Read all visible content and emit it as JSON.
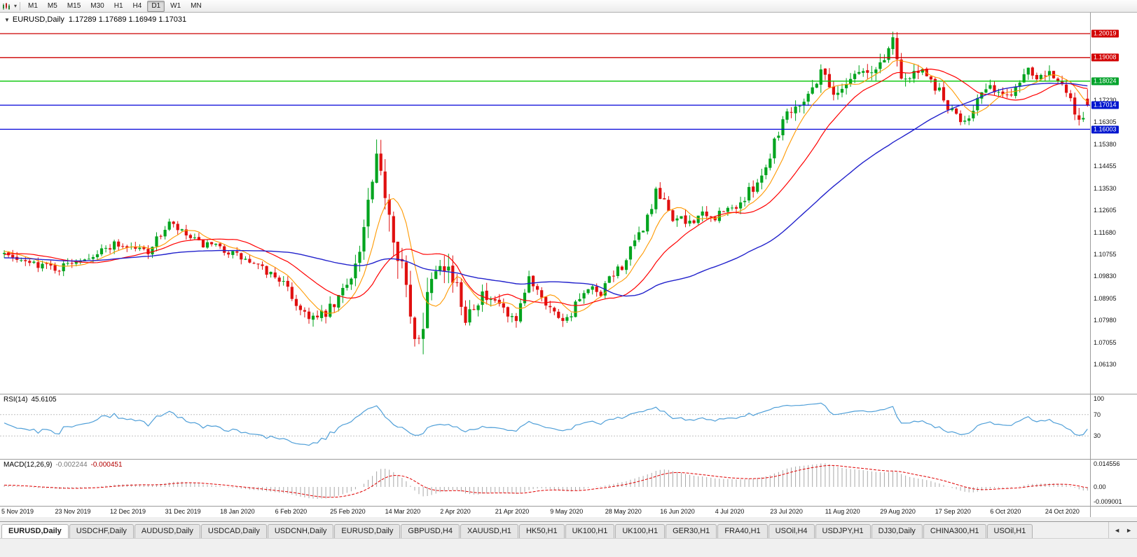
{
  "toolbar": {
    "caret_icon": "▾",
    "timeframes": [
      {
        "label": "M1",
        "active": false
      },
      {
        "label": "M5",
        "active": false
      },
      {
        "label": "M15",
        "active": false
      },
      {
        "label": "M30",
        "active": false
      },
      {
        "label": "H1",
        "active": false
      },
      {
        "label": "H4",
        "active": false
      },
      {
        "label": "D1",
        "active": true
      },
      {
        "label": "W1",
        "active": false
      },
      {
        "label": "MN",
        "active": false
      }
    ]
  },
  "chart": {
    "title": "EURUSD,Daily",
    "ohlc": "1.17289 1.17689 1.16949 1.17031",
    "price_range": {
      "min": 1.049,
      "max": 1.209
    },
    "axis_labels": [
      1.1723,
      1.16305,
      1.1538,
      1.14455,
      1.1353,
      1.12605,
      1.1168,
      1.10755,
      1.0983,
      1.08905,
      1.0798,
      1.07055,
      1.0613
    ],
    "hlines": [
      {
        "price": 1.20019,
        "label": "1.20019",
        "line_color": "#cc0000",
        "badge_color": "#d20000"
      },
      {
        "price": 1.19008,
        "label": "1.19008",
        "line_color": "#cc0000",
        "badge_color": "#d20000"
      },
      {
        "price": 1.18024,
        "label": "1.18024",
        "line_color": "#00c400",
        "badge_color": "#00a22a"
      },
      {
        "price": 1.17014,
        "label": "1.17014",
        "line_color": "#0000d8",
        "badge_color": "#0015cf"
      },
      {
        "price": 1.16003,
        "label": "1.16003",
        "line_color": "#0000d8",
        "badge_color": "#0015cf"
      }
    ],
    "date_labels": [
      "5 Nov 2019",
      "23 Nov 2019",
      "12 Dec 2019",
      "31 Dec 2019",
      "18 Jan 2020",
      "6 Feb 2020",
      "25 Feb 2020",
      "14 Mar 2020",
      "2 Apr 2020",
      "21 Apr 2020",
      "9 May 2020",
      "28 May 2020",
      "16 Jun 2020",
      "4 Jul 2020",
      "23 Jul 2020",
      "11 Aug 2020",
      "29 Aug 2020",
      "17 Sep 2020",
      "6 Oct 2020",
      "24 Oct 2020"
    ],
    "candles_per_date_label": 13
  },
  "rsi": {
    "label": "RSI(14)",
    "value": "45.6105",
    "line_color": "#4f9fd8",
    "levels": [
      70,
      30
    ],
    "axis_labels": [
      {
        "label": "100",
        "v": 100
      },
      {
        "label": "70",
        "v": 70
      },
      {
        "label": "30",
        "v": 30
      }
    ]
  },
  "macd": {
    "label": "MACD(12,26,9)",
    "value_main": "-0.002244",
    "value_signal": "-0.000451",
    "histogram_color": "#a8a8a8",
    "signal_color": "#e00000",
    "range": {
      "min": -0.009001,
      "max": 0.014556
    },
    "axis_labels": [
      {
        "label": "0.014556",
        "v": 0.014556
      },
      {
        "label": "0.00",
        "v": 0
      },
      {
        "label": "-0.009001",
        "v": -0.009001
      }
    ]
  },
  "tabbar": {
    "scroll_left": "◄",
    "scroll_right": "►",
    "tabs": [
      {
        "label": "EURUSD,Daily",
        "active": true
      },
      {
        "label": "USDCHF,Daily",
        "active": false
      },
      {
        "label": "AUDUSD,Daily",
        "active": false
      },
      {
        "label": "USDCAD,Daily",
        "active": false
      },
      {
        "label": "USDCNH,Daily",
        "active": false
      },
      {
        "label": "EURUSD,Daily",
        "active": false
      },
      {
        "label": "GBPUSD,H4",
        "active": false
      },
      {
        "label": "XAUUSD,H1",
        "active": false
      },
      {
        "label": "HK50,H1",
        "active": false
      },
      {
        "label": "UK100,H1",
        "active": false
      },
      {
        "label": "UK100,H1",
        "active": false
      },
      {
        "label": "GER30,H1",
        "active": false
      },
      {
        "label": "FRA40,H1",
        "active": false
      },
      {
        "label": "USOil,H4",
        "active": false
      },
      {
        "label": "USDJPY,H1",
        "active": false
      },
      {
        "label": "DJ30,Daily",
        "active": false
      },
      {
        "label": "CHINA300,H1",
        "active": false
      },
      {
        "label": "USOil,H1",
        "active": false
      }
    ]
  },
  "chart_data": {
    "type": "candlestick",
    "symbol": "EURUSD",
    "timeframe": "Daily",
    "n_candles": 257,
    "seed": 7,
    "up_color": "#00a41e",
    "down_color": "#e01010",
    "last_candle": {
      "o": 1.17289,
      "h": 1.17689,
      "l": 1.16949,
      "c": 1.17031
    },
    "close_anchors": [
      [
        0,
        1.1075
      ],
      [
        4,
        1.104
      ],
      [
        8,
        1.1035
      ],
      [
        13,
        1.1015
      ],
      [
        17,
        1.1055
      ],
      [
        22,
        1.108
      ],
      [
        26,
        1.112
      ],
      [
        30,
        1.1105
      ],
      [
        34,
        1.109
      ],
      [
        39,
        1.1205
      ],
      [
        42,
        1.1165
      ],
      [
        46,
        1.112
      ],
      [
        52,
        1.1095
      ],
      [
        56,
        1.106
      ],
      [
        60,
        1.102
      ],
      [
        65,
        1.0975
      ],
      [
        70,
        1.0845
      ],
      [
        74,
        1.08
      ],
      [
        78,
        1.0855
      ],
      [
        81,
        1.096
      ],
      [
        84,
        1.108
      ],
      [
        86,
        1.128
      ],
      [
        88,
        1.1445
      ],
      [
        90,
        1.135
      ],
      [
        92,
        1.1175
      ],
      [
        94,
        1.1045
      ],
      [
        96,
        1.078
      ],
      [
        97,
        1.0705
      ],
      [
        99,
        1.081
      ],
      [
        101,
        1.1005
      ],
      [
        103,
        1.1075
      ],
      [
        105,
        1.102
      ],
      [
        107,
        1.092
      ],
      [
        109,
        1.082
      ],
      [
        111,
        1.0875
      ],
      [
        113,
        1.0905
      ],
      [
        115,
        1.0862
      ],
      [
        117,
        1.0868
      ],
      [
        119,
        1.0808
      ],
      [
        121,
        1.0782
      ],
      [
        124,
        1.0975
      ],
      [
        126,
        1.0935
      ],
      [
        128,
        1.0878
      ],
      [
        130,
        1.0828
      ],
      [
        133,
        1.0805
      ],
      [
        136,
        1.0888
      ],
      [
        139,
        1.0928
      ],
      [
        141,
        1.0892
      ],
      [
        143,
        1.0978
      ],
      [
        146,
        1.1028
      ],
      [
        149,
        1.1118
      ],
      [
        152,
        1.1228
      ],
      [
        154,
        1.1328
      ],
      [
        156,
        1.1288
      ],
      [
        158,
        1.1232
      ],
      [
        161,
        1.1205
      ],
      [
        164,
        1.1238
      ],
      [
        167,
        1.1222
      ],
      [
        169,
        1.1245
      ],
      [
        172,
        1.1268
      ],
      [
        175,
        1.1308
      ],
      [
        178,
        1.1388
      ],
      [
        180,
        1.1438
      ],
      [
        182,
        1.1558
      ],
      [
        185,
        1.1678
      ],
      [
        188,
        1.1718
      ],
      [
        191,
        1.1768
      ],
      [
        193,
        1.1858
      ],
      [
        195,
        1.1788
      ],
      [
        197,
        1.1738
      ],
      [
        199,
        1.1808
      ],
      [
        202,
        1.1848
      ],
      [
        205,
        1.1828
      ],
      [
        208,
        1.1902
      ],
      [
        210,
        1.1982
      ],
      [
        211,
        1.1918
      ],
      [
        212,
        1.1828
      ],
      [
        214,
        1.1812
      ],
      [
        216,
        1.1848
      ],
      [
        218,
        1.1812
      ],
      [
        221,
        1.1762
      ],
      [
        223,
        1.1688
      ],
      [
        226,
        1.1638
      ],
      [
        228,
        1.1658
      ],
      [
        230,
        1.1728
      ],
      [
        232,
        1.1762
      ],
      [
        234,
        1.1772
      ],
      [
        236,
        1.1738
      ],
      [
        238,
        1.1758
      ],
      [
        240,
        1.1808
      ],
      [
        242,
        1.1858
      ],
      [
        244,
        1.1828
      ],
      [
        247,
        1.1852
      ],
      [
        249,
        1.1802
      ],
      [
        251,
        1.1748
      ],
      [
        253,
        1.1678
      ],
      [
        254,
        1.1638
      ],
      [
        255,
        1.1658
      ],
      [
        256,
        1.1703
      ]
    ],
    "volatility_anchors": [
      [
        0,
        0.0038
      ],
      [
        60,
        0.0038
      ],
      [
        68,
        0.0052
      ],
      [
        80,
        0.0062
      ],
      [
        85,
        0.0095
      ],
      [
        90,
        0.0135
      ],
      [
        97,
        0.0145
      ],
      [
        102,
        0.0115
      ],
      [
        108,
        0.0085
      ],
      [
        115,
        0.0062
      ],
      [
        125,
        0.005
      ],
      [
        140,
        0.0046
      ],
      [
        150,
        0.0052
      ],
      [
        160,
        0.0056
      ],
      [
        170,
        0.0046
      ],
      [
        180,
        0.0056
      ],
      [
        193,
        0.0066
      ],
      [
        200,
        0.005
      ],
      [
        210,
        0.0078
      ],
      [
        216,
        0.0052
      ],
      [
        225,
        0.0046
      ],
      [
        235,
        0.0044
      ],
      [
        245,
        0.0046
      ],
      [
        250,
        0.0056
      ],
      [
        256,
        0.006
      ]
    ],
    "moving_averages": [
      {
        "period": 8,
        "color": "#ff9900",
        "width": 1.1
      },
      {
        "period": 20,
        "color": "#ff0000",
        "width": 1.2
      },
      {
        "period": 55,
        "color": "#2222cc",
        "width": 1.4
      }
    ],
    "rsi_period": 14,
    "macd_params": [
      12,
      26,
      9
    ]
  }
}
